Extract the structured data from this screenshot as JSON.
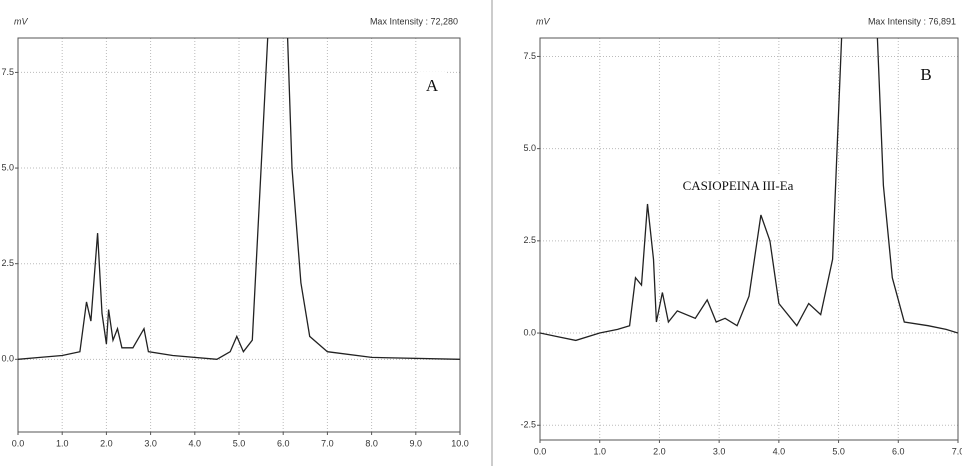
{
  "chart_data": [
    {
      "type": "line",
      "y_label": "mV",
      "max_intensity_label": "Max Intensity : 72,280",
      "panel_label": "A",
      "xlim": [
        0,
        10
      ],
      "ylim": [
        -1.9,
        8.4
      ],
      "grid": true,
      "color": "#222222",
      "xticks": [
        {
          "value": 0,
          "label": "0.0"
        },
        {
          "value": 1,
          "label": "1.0"
        },
        {
          "value": 2,
          "label": "2.0"
        },
        {
          "value": 3,
          "label": "3.0"
        },
        {
          "value": 4,
          "label": "4.0"
        },
        {
          "value": 5,
          "label": "5.0"
        },
        {
          "value": 6,
          "label": "6.0"
        },
        {
          "value": 7,
          "label": "7.0"
        },
        {
          "value": 8,
          "label": "8.0"
        },
        {
          "value": 9,
          "label": "9.0"
        },
        {
          "value": 10,
          "label": "10.0"
        }
      ],
      "yticks": [
        {
          "value": 0,
          "label": "0.0"
        },
        {
          "value": 2.5,
          "label": "2.5"
        },
        {
          "value": 5,
          "label": "5.0"
        },
        {
          "value": 7.5,
          "label": "7.5"
        }
      ],
      "x": [
        0,
        0.5,
        1.0,
        1.4,
        1.55,
        1.65,
        1.8,
        1.9,
        2.0,
        2.05,
        2.15,
        2.25,
        2.35,
        2.6,
        2.85,
        2.95,
        3.5,
        4.5,
        4.8,
        4.95,
        5.1,
        5.3,
        5.5,
        5.65,
        5.85,
        6.1,
        6.2,
        6.4,
        6.6,
        7.0,
        8.0,
        10.0
      ],
      "values": [
        0.0,
        0.05,
        0.1,
        0.2,
        1.5,
        1.0,
        3.3,
        1.2,
        0.4,
        1.3,
        0.5,
        0.8,
        0.3,
        0.3,
        0.8,
        0.2,
        0.1,
        0.0,
        0.2,
        0.6,
        0.2,
        0.5,
        5.0,
        8.4,
        null,
        8.4,
        5.0,
        2.0,
        0.6,
        0.2,
        0.05,
        0.0
      ]
    },
    {
      "type": "line",
      "y_label": "mV",
      "max_intensity_label": "Max Intensity : 76,891",
      "panel_label": "B",
      "annotation": "CASIOPEINA III-Ea",
      "xlim": [
        0,
        7
      ],
      "ylim": [
        -2.9,
        8.0
      ],
      "grid": true,
      "color": "#222222",
      "xticks": [
        {
          "value": 0,
          "label": "0.0"
        },
        {
          "value": 1,
          "label": "1.0"
        },
        {
          "value": 2,
          "label": "2.0"
        },
        {
          "value": 3,
          "label": "3.0"
        },
        {
          "value": 4,
          "label": "4.0"
        },
        {
          "value": 5,
          "label": "5.0"
        },
        {
          "value": 6,
          "label": "6.0"
        },
        {
          "value": 7,
          "label": "7.0"
        }
      ],
      "yticks": [
        {
          "value": -2.5,
          "label": "-2.5"
        },
        {
          "value": 0,
          "label": "0.0"
        },
        {
          "value": 2.5,
          "label": "2.5"
        },
        {
          "value": 5,
          "label": "5.0"
        },
        {
          "value": 7.5,
          "label": "7.5"
        }
      ],
      "x": [
        0,
        0.3,
        0.6,
        1.0,
        1.3,
        1.5,
        1.6,
        1.7,
        1.8,
        1.9,
        1.95,
        2.05,
        2.15,
        2.3,
        2.6,
        2.8,
        2.95,
        3.1,
        3.3,
        3.5,
        3.7,
        3.85,
        4.0,
        4.3,
        4.5,
        4.7,
        4.9,
        5.05,
        5.35,
        5.65,
        5.75,
        5.9,
        6.1,
        6.5,
        6.8,
        7.0
      ],
      "values": [
        0.0,
        -0.1,
        -0.2,
        0.0,
        0.1,
        0.2,
        1.5,
        1.3,
        3.5,
        2.0,
        0.3,
        1.1,
        0.3,
        0.6,
        0.4,
        0.9,
        0.3,
        0.4,
        0.2,
        1.0,
        3.2,
        2.5,
        0.8,
        0.2,
        0.8,
        0.5,
        2.0,
        8.0,
        null,
        8.0,
        4.0,
        1.5,
        0.3,
        0.2,
        0.1,
        0.0
      ]
    }
  ]
}
